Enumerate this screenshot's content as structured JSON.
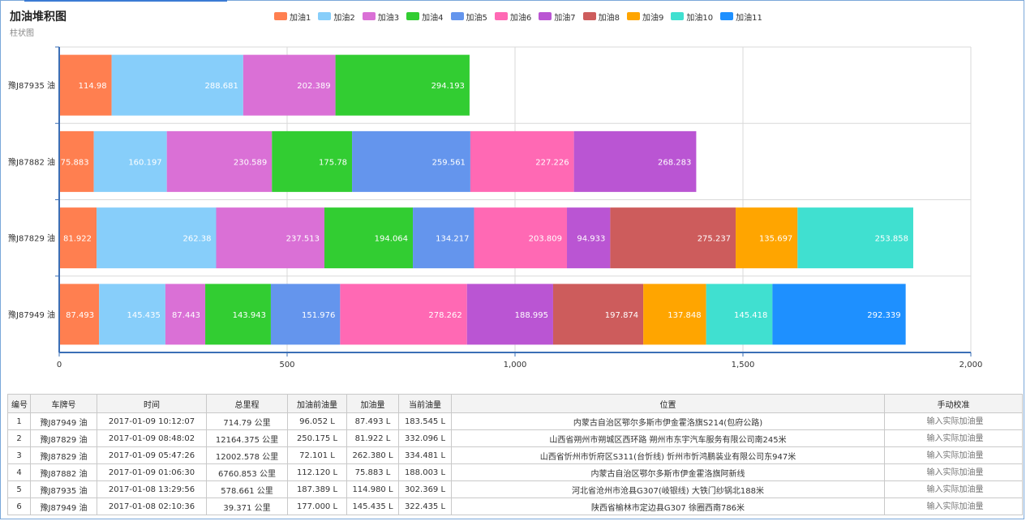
{
  "chart_data": {
    "type": "bar",
    "orientation": "horizontal",
    "stacked": true,
    "title": "加油堆积图",
    "subtitle": "柱状图",
    "categories": [
      "豫J87935 油",
      "豫J87882 油",
      "豫J87829 油",
      "豫J87949 油"
    ],
    "xlim": [
      0,
      2000
    ],
    "xticks": [
      0,
      500,
      1000,
      1500,
      2000
    ],
    "xtick_labels": [
      "0",
      "500",
      "1,000",
      "1,500",
      "2,000"
    ],
    "legend_position": "top",
    "grid": true,
    "series": [
      {
        "name": "加油1",
        "color": "#ff7f50",
        "values": [
          114.98,
          75.883,
          81.922,
          87.493
        ]
      },
      {
        "name": "加油2",
        "color": "#87cefa",
        "values": [
          288.681,
          160.197,
          262.38,
          145.435
        ]
      },
      {
        "name": "加油3",
        "color": "#da70d6",
        "values": [
          202.389,
          230.589,
          237.513,
          87.443
        ]
      },
      {
        "name": "加油4",
        "color": "#32cd32",
        "values": [
          294.193,
          175.78,
          194.064,
          143.943
        ]
      },
      {
        "name": "加油5",
        "color": "#6495ed",
        "values": [
          null,
          259.561,
          134.217,
          151.976
        ]
      },
      {
        "name": "加油6",
        "color": "#ff69b4",
        "values": [
          null,
          227.226,
          203.809,
          278.262
        ]
      },
      {
        "name": "加油7",
        "color": "#ba55d3",
        "values": [
          null,
          268.283,
          94.933,
          188.995
        ]
      },
      {
        "name": "加油8",
        "color": "#cd5c5c",
        "values": [
          null,
          null,
          275.237,
          197.874
        ]
      },
      {
        "name": "加油9",
        "color": "#ffa500",
        "values": [
          null,
          null,
          135.697,
          137.848
        ]
      },
      {
        "name": "加油10",
        "color": "#40e0d0",
        "values": [
          null,
          null,
          253.858,
          145.418
        ]
      },
      {
        "name": "加油11",
        "color": "#1e90ff",
        "values": [
          null,
          null,
          null,
          292.339
        ]
      }
    ]
  },
  "table": {
    "headers": [
      "编号",
      "车牌号",
      "时间",
      "总里程",
      "加油前油量",
      "加油量",
      "当前油量",
      "位置",
      "手动校准"
    ],
    "placeholder": "输入实际加油量",
    "rows": [
      [
        "1",
        "豫J87949 油",
        "2017-01-09 10:12:07",
        "714.79 公里",
        "96.052 L",
        "87.493 L",
        "183.545 L",
        "内蒙古自治区鄂尔多斯市伊金霍洛旗S214(包府公路)"
      ],
      [
        "2",
        "豫J87829 油",
        "2017-01-09 08:48:02",
        "12164.375 公里",
        "250.175 L",
        "81.922 L",
        "332.096 L",
        "山西省朔州市朔城区西环路 朔州市东宇汽车服务有限公司南245米"
      ],
      [
        "3",
        "豫J87829 油",
        "2017-01-09 05:47:26",
        "12002.578 公里",
        "72.101 L",
        "262.380 L",
        "334.481 L",
        "山西省忻州市忻府区S311(台忻线) 忻州市忻鸿鹏装业有限公司东947米"
      ],
      [
        "4",
        "豫J87882 油",
        "2017-01-09 01:06:30",
        "6760.853 公里",
        "112.120 L",
        "75.883 L",
        "188.003 L",
        "内蒙古自治区鄂尔多斯市伊金霍洛旗阿新线"
      ],
      [
        "5",
        "豫J87935 油",
        "2017-01-08 13:29:56",
        "578.661 公里",
        "187.389 L",
        "114.980 L",
        "302.369 L",
        "河北省沧州市沧县G307(岐银线) 大铁门纱锅北188米"
      ],
      [
        "6",
        "豫J87949 油",
        "2017-01-08 02:10:36",
        "39.371 公里",
        "177.000 L",
        "145.435 L",
        "322.435 L",
        "陕西省榆林市定边县G307 徐圈西南786米"
      ]
    ]
  }
}
